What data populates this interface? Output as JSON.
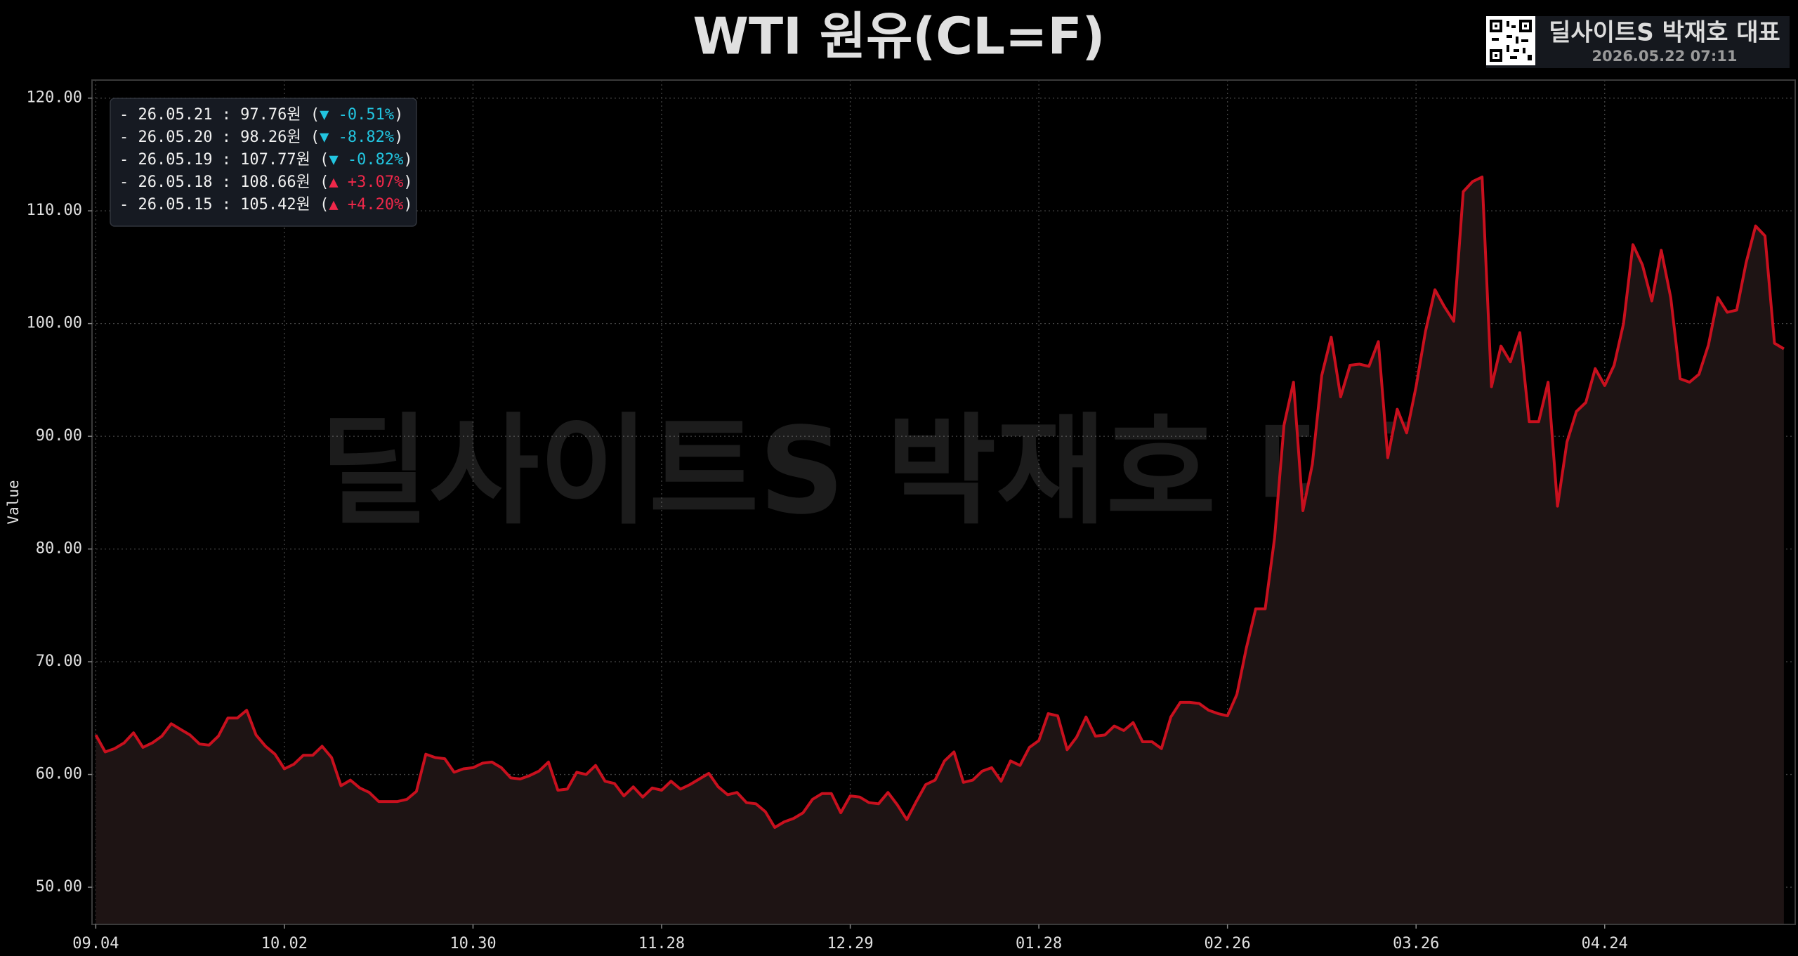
{
  "chart_data": {
    "type": "line",
    "title": "WTI 원유(CL=F)",
    "y_label": "Value",
    "watermark": "딜사이트S 박재호 대표",
    "brand": "딜사이트S 박재호 대표",
    "timestamp": "2026.05.22 07:11",
    "grid": true,
    "x": [
      0,
      1,
      2,
      3,
      4,
      5,
      6,
      7,
      8,
      9,
      10,
      11,
      12,
      13,
      14,
      15,
      16,
      17,
      18,
      19,
      20,
      21,
      22,
      23,
      24,
      25,
      26,
      27,
      28,
      29,
      30,
      31,
      32,
      33,
      34,
      35,
      36,
      37,
      38,
      39,
      40,
      41,
      42,
      43,
      44,
      45,
      46,
      47,
      48,
      49,
      50,
      51,
      52,
      53,
      54,
      55,
      56,
      57,
      58,
      59,
      60,
      61,
      62,
      63,
      64,
      65,
      66,
      67,
      68,
      69,
      70,
      71,
      72,
      73,
      74,
      75,
      76,
      77,
      78,
      79,
      80,
      81,
      82,
      83,
      84,
      85,
      86,
      87,
      88,
      89,
      90,
      91,
      92,
      93,
      94,
      95,
      96,
      97,
      98,
      99,
      100,
      101,
      102,
      103,
      104,
      105,
      106,
      107,
      108,
      109,
      110,
      111,
      112,
      113,
      114,
      115,
      116,
      117,
      118,
      119,
      120,
      121,
      122,
      123,
      124,
      125,
      126,
      127,
      128,
      129,
      130,
      131,
      132,
      133,
      134,
      135,
      136,
      137,
      138,
      139,
      140,
      141,
      142,
      143,
      144,
      145,
      146,
      147,
      148,
      149,
      150,
      151,
      152,
      153,
      154,
      155,
      156,
      157,
      158,
      159,
      160,
      161,
      162,
      163,
      164,
      165,
      166,
      167,
      168,
      169,
      170,
      171,
      172,
      173,
      174,
      175,
      176,
      177,
      178,
      179
    ],
    "series": [
      {
        "color": "#c8101e",
        "fill": "#1e1414",
        "values": [
          63.5,
          62.0,
          62.3,
          62.8,
          63.7,
          62.4,
          62.8,
          63.4,
          64.5,
          64.0,
          63.5,
          62.7,
          62.6,
          63.4,
          65.0,
          65.0,
          65.7,
          63.5,
          62.5,
          61.8,
          60.5,
          60.9,
          61.7,
          61.7,
          62.5,
          61.5,
          59.0,
          59.5,
          58.8,
          58.4,
          57.6,
          57.6,
          57.6,
          57.8,
          58.5,
          61.8,
          61.5,
          61.4,
          60.2,
          60.5,
          60.6,
          61.0,
          61.1,
          60.6,
          59.7,
          59.6,
          59.9,
          60.3,
          61.1,
          58.6,
          58.7,
          60.2,
          60.0,
          60.8,
          59.4,
          59.2,
          58.1,
          58.9,
          58.0,
          58.8,
          58.6,
          59.4,
          58.7,
          59.1,
          59.6,
          60.1,
          58.9,
          58.2,
          58.4,
          57.5,
          57.4,
          56.7,
          55.3,
          55.8,
          56.1,
          56.6,
          57.8,
          58.3,
          58.3,
          56.6,
          58.1,
          58.0,
          57.5,
          57.4,
          58.4,
          57.3,
          56.0,
          57.6,
          59.1,
          59.5,
          61.2,
          62.0,
          59.3,
          59.5,
          60.3,
          60.6,
          59.4,
          61.2,
          60.8,
          62.4,
          63.0,
          65.4,
          65.2,
          62.2,
          63.3,
          65.1,
          63.4,
          63.5,
          64.3,
          63.9,
          64.6,
          62.9,
          62.9,
          62.3,
          65.1,
          66.4,
          66.4,
          66.3,
          65.7,
          65.4,
          65.2,
          67.1,
          71.2,
          74.7,
          74.7,
          81.0,
          91.0,
          94.8,
          83.4,
          87.5,
          95.4,
          98.8,
          93.5,
          96.3,
          96.4,
          96.2,
          98.4,
          88.1,
          92.4,
          90.3,
          94.4,
          99.3,
          103.0,
          101.5,
          100.2,
          111.7,
          112.6,
          113.0,
          94.4,
          98.0,
          96.6,
          99.2,
          91.3,
          91.3,
          94.8,
          83.8,
          89.5,
          92.2,
          93.0,
          96.0,
          94.5,
          96.3,
          100.0,
          107.0,
          105.2,
          102.0,
          106.5,
          102.3,
          95.1,
          94.8,
          95.5,
          98.1,
          102.3,
          101.0,
          101.2,
          105.42,
          108.66,
          107.77,
          98.26,
          97.76
        ]
      }
    ],
    "xlim": [
      -0.4,
      180.2
    ],
    "xticks": [
      {
        "value": 0,
        "label": "09.04"
      },
      {
        "value": 20,
        "label": "10.02"
      },
      {
        "value": 40,
        "label": "10.30"
      },
      {
        "value": 60,
        "label": "11.28"
      },
      {
        "value": 80,
        "label": "12.29"
      },
      {
        "value": 100,
        "label": "01.28"
      },
      {
        "value": 120,
        "label": "02.26"
      },
      {
        "value": 140,
        "label": "03.26"
      },
      {
        "value": 160,
        "label": "04.24"
      }
    ],
    "ylim": [
      46.7,
      121.6
    ],
    "yticks": [
      {
        "value": 50,
        "label": "50.00"
      },
      {
        "value": 60,
        "label": "60.00"
      },
      {
        "value": 70,
        "label": "70.00"
      },
      {
        "value": 80,
        "label": "80.00"
      },
      {
        "value": 90,
        "label": "90.00"
      },
      {
        "value": 100,
        "label": "100.00"
      },
      {
        "value": 110,
        "label": "110.00"
      },
      {
        "value": 120,
        "label": "120.00"
      }
    ],
    "annotations": [
      {
        "text": "- 26.05.21 : 97.76원 (",
        "change": "▼ -0.51%",
        "close": ")",
        "color": "#22c5e0"
      },
      {
        "text": "- 26.05.20 : 98.26원 (",
        "change": "▼ -8.82%",
        "close": ")",
        "color": "#22c5e0"
      },
      {
        "text": "- 26.05.19 : 107.77원 (",
        "change": "▼ -0.82%",
        "close": ")",
        "color": "#22c5e0"
      },
      {
        "text": "- 26.05.18 : 108.66원 (",
        "change": "▲ +3.07%",
        "close": ")",
        "color": "#f0284a"
      },
      {
        "text": "- 26.05.15 : 105.42원 (",
        "change": "▲ +4.20%",
        "close": ")",
        "color": "#f0284a"
      }
    ]
  }
}
